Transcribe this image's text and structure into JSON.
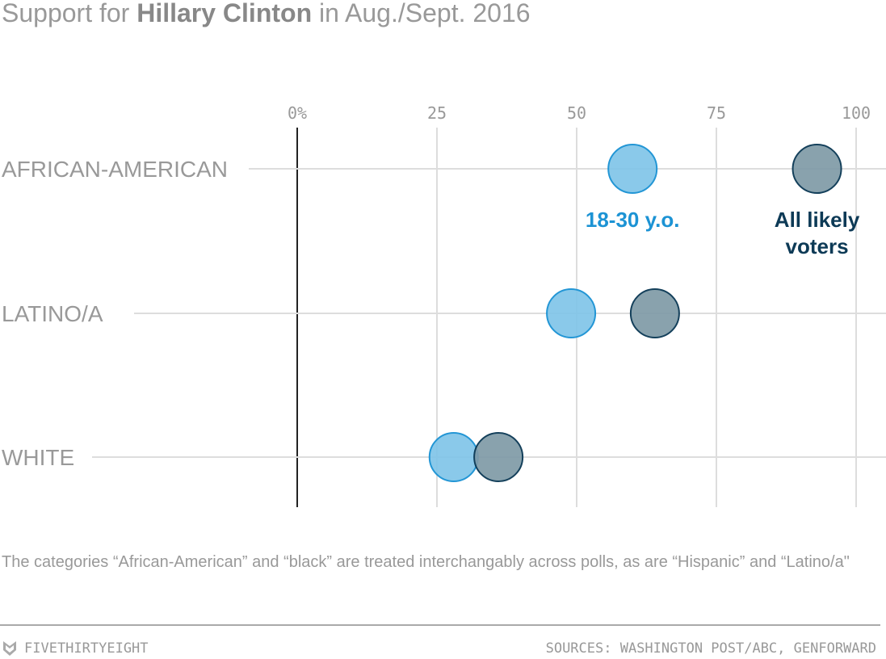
{
  "title": {
    "prefix": "Support for ",
    "bold": "Hillary Clinton",
    "suffix": " in Aug./Sept. 2016"
  },
  "chart_data": {
    "type": "scatter",
    "title": "Support for Hillary Clinton in Aug./Sept. 2016",
    "xlim": [
      0,
      100
    ],
    "x_ticks": [
      0,
      25,
      50,
      75,
      100
    ],
    "x_tick_labels": [
      "0%",
      "25",
      "50",
      "75",
      "100"
    ],
    "grid": true,
    "categories": [
      "AFRICAN-AMERICAN",
      "LATINO/A",
      "WHITE"
    ],
    "series": [
      {
        "name": "18-30 y.o.",
        "values": [
          60,
          49,
          28
        ],
        "color": "#1c93d4",
        "fill": "#7fc4e8"
      },
      {
        "name": "All likely\nvoters",
        "values": [
          93,
          64,
          36
        ],
        "color": "#0d3a56",
        "fill": "#7e9aa7"
      }
    ]
  },
  "note": "The categories “African-American” and “black” are treated interchangably across polls, as are “Hispanic” and “Latino/a\"",
  "footer": {
    "brand": "FIVETHIRTYEIGHT",
    "sources": "SOURCES: WASHINGTON POST/ABC, GENFORWARD",
    "logo_icon": "fox-icon"
  }
}
